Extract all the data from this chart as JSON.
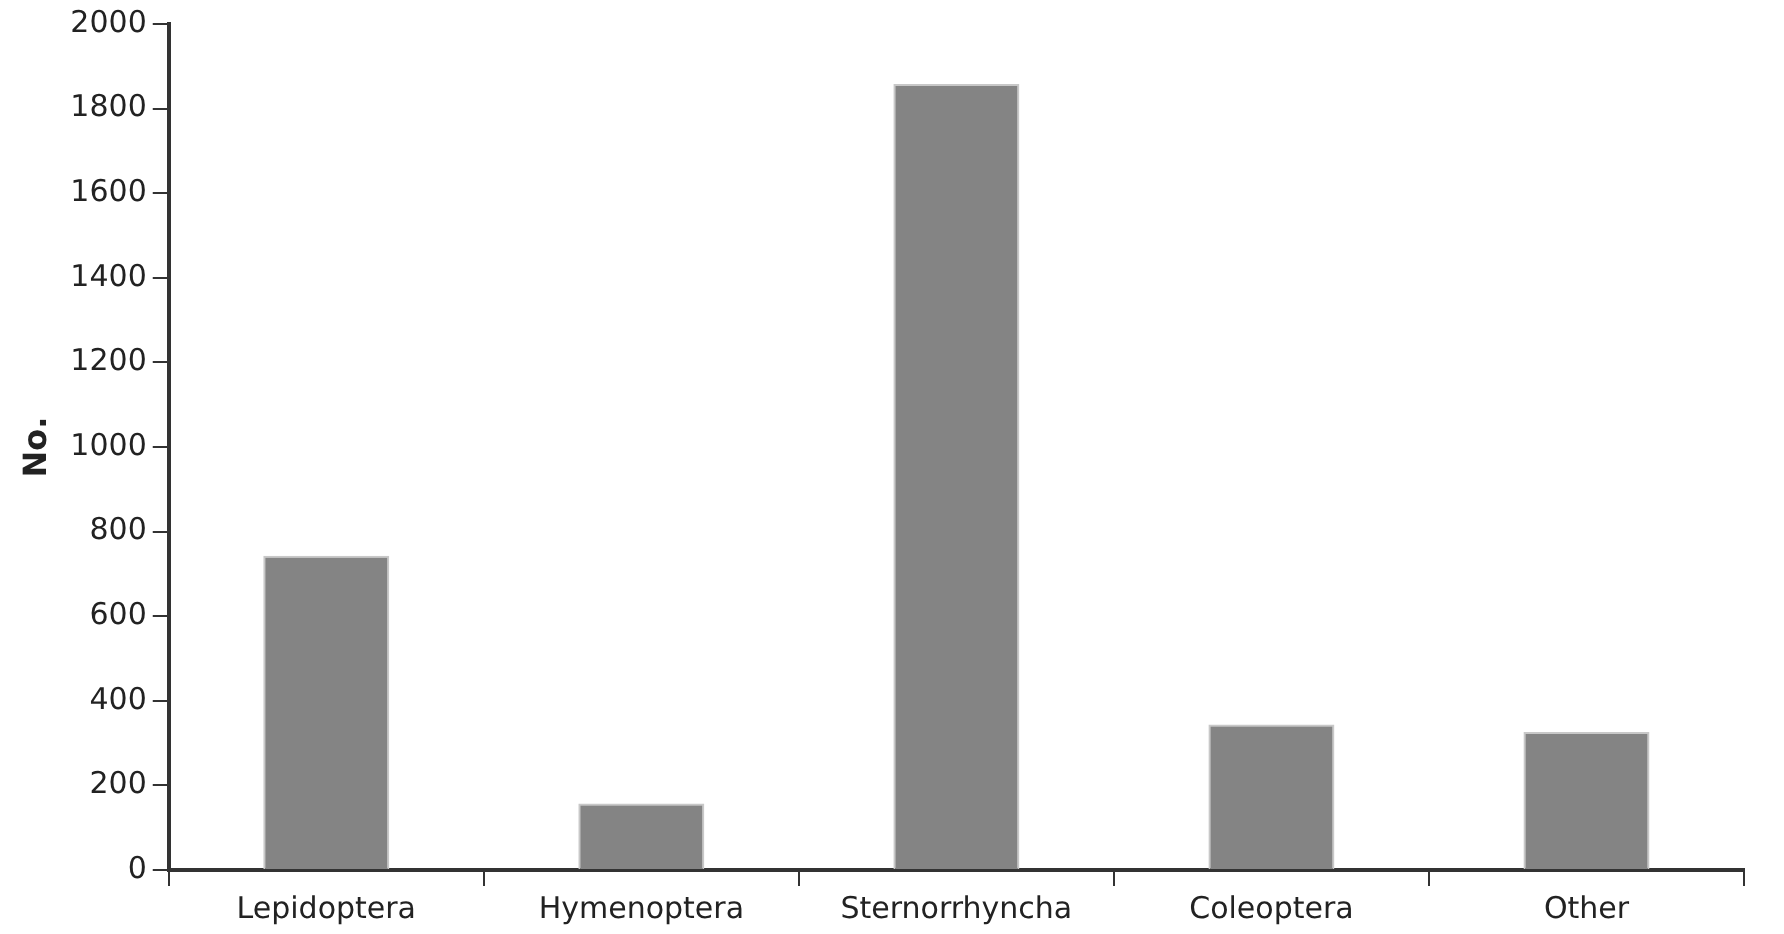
{
  "chart_data": {
    "type": "bar",
    "ylabel": "No.",
    "categories": [
      "Lepidoptera",
      "Hymenoptera",
      "Sternorrhyncha",
      "Coleoptera",
      "Other"
    ],
    "values": [
      743,
      157,
      1858,
      344,
      326
    ],
    "color": "#848484",
    "ylim": [
      0,
      2000
    ],
    "yticks": [
      0,
      200,
      400,
      600,
      800,
      1000,
      1200,
      1400,
      1600,
      1800,
      2000
    ],
    "grid": false,
    "legend": false
  }
}
